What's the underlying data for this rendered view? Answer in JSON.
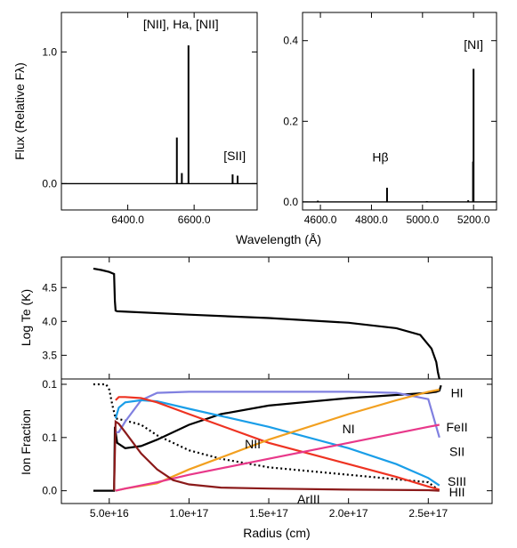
{
  "chart_data": [
    {
      "type": "line",
      "panel": "spectrum-red",
      "ylabel": "Flux (Relative Fλ)",
      "xlim": [
        6200,
        6790
      ],
      "ylim": [
        -0.2,
        1.3
      ],
      "x_ticks": [
        6400,
        6600
      ],
      "x_tick_labels": [
        "6400.0",
        "6600.0"
      ],
      "y_ticks": [
        0.0,
        1.0
      ],
      "y_tick_labels": [
        "0.0",
        "1.0"
      ],
      "baseline": 0.0,
      "lines": [
        {
          "x": 6548,
          "y": 0.35
        },
        {
          "x": 6563,
          "y": 0.08
        },
        {
          "x": 6583,
          "y": 1.05
        },
        {
          "x": 6716,
          "y": 0.07
        },
        {
          "x": 6731,
          "y": 0.06
        }
      ],
      "annotations": [
        {
          "text": "[NII], Ha, [NII]",
          "x": 6560,
          "y": 1.18
        },
        {
          "text": "[SII]",
          "x": 6722,
          "y": 0.18
        }
      ]
    },
    {
      "type": "line",
      "panel": "spectrum-blue",
      "xlim": [
        4530,
        5290
      ],
      "ylim": [
        -0.02,
        0.47
      ],
      "x_ticks": [
        4600,
        4800,
        5000,
        5200
      ],
      "x_tick_labels": [
        "4600.0",
        "4800.0",
        "5000.0",
        "5200.0"
      ],
      "y_ticks": [
        0.0,
        0.2,
        0.4
      ],
      "y_tick_labels": [
        "0.0",
        "0.2",
        "0.4"
      ],
      "baseline": 0.0,
      "lines": [
        {
          "x": 4590,
          "y": 0.003
        },
        {
          "x": 4861,
          "y": 0.035
        },
        {
          "x": 5017,
          "y": 0.002
        },
        {
          "x": 5179,
          "y": 0.004
        },
        {
          "x": 5198,
          "y": 0.1
        },
        {
          "x": 5200,
          "y": 0.33
        }
      ],
      "annotations": [
        {
          "text": "Hβ",
          "x": 4835,
          "y": 0.1
        },
        {
          "text": "[NI]",
          "x": 5200,
          "y": 0.38
        }
      ]
    },
    {
      "type": "line",
      "panel": "temperature",
      "ylabel": "Log Te (K)",
      "xlim": [
        2e+16,
        2.9e+17
      ],
      "ylim": [
        3.15,
        4.95
      ],
      "y_ticks": [
        3.5,
        4.0,
        4.5
      ],
      "y_tick_labels": [
        "3.5",
        "4.0",
        "4.5"
      ],
      "series": [
        {
          "x": [
            4e+16,
            4.5e+16,
            5e+16,
            5.3e+16,
            5.35e+16,
            5.4e+16,
            5.5e+16,
            1e+17,
            1.5e+17,
            2e+17,
            2.3e+17,
            2.45e+17,
            2.52e+17,
            2.55e+17,
            2.56e+17,
            2.57e+17
          ],
          "y": [
            4.78,
            4.76,
            4.73,
            4.7,
            4.3,
            4.16,
            4.15,
            4.1,
            4.05,
            3.98,
            3.9,
            3.8,
            3.6,
            3.4,
            3.25,
            3.15
          ]
        }
      ]
    },
    {
      "type": "line",
      "panel": "ion-fraction",
      "ylabel": "Ion Fraction",
      "xlabel": "Radius (cm)",
      "xlim": [
        2e+16,
        2.9e+17
      ],
      "ylim": [
        -0.012,
        0.105
      ],
      "x_ticks": [
        5e+16,
        1e+17,
        1.5e+17,
        2e+17,
        2.5e+17
      ],
      "x_tick_labels": [
        "5.0e+16",
        "1.0e+17",
        "1.5e+17",
        "2.0e+17",
        "2.5e+17"
      ],
      "y_ticks": [
        0.0,
        0.05,
        0.1
      ],
      "y_tick_labels": [
        "0.0",
        "0.1",
        "0.1"
      ],
      "series": [
        {
          "name": "HI",
          "color": "#000000",
          "dash": false,
          "x": [
            4e+16,
            5.3e+16,
            5.35e+16,
            5.5e+16,
            6e+16,
            7e+16,
            8e+16,
            1e+17,
            1.2e+17,
            1.5e+17,
            2e+17,
            2.5e+17,
            2.55e+17,
            2.57e+17,
            2.58e+17
          ],
          "y": [
            0.0,
            0.0,
            0.06,
            0.045,
            0.04,
            0.042,
            0.048,
            0.062,
            0.072,
            0.08,
            0.087,
            0.092,
            0.093,
            0.094,
            0.099
          ]
        },
        {
          "name": "HII",
          "color": "#000000",
          "dash": true,
          "x": [
            4e+16,
            4.8e+16,
            5e+16,
            5.2e+16,
            5.4e+16,
            6e+16,
            7e+16,
            8e+16,
            1e+17,
            1.2e+17,
            1.5e+17,
            2e+17,
            2.5e+17,
            2.57e+17
          ],
          "y": [
            0.1,
            0.1,
            0.095,
            0.08,
            0.068,
            0.066,
            0.062,
            0.052,
            0.038,
            0.03,
            0.022,
            0.015,
            0.008,
            0.0
          ]
        },
        {
          "name": "FeII",
          "color": "#8080e0",
          "dash": false,
          "x": [
            5.4e+16,
            5.6e+16,
            6e+16,
            7e+16,
            8e+16,
            1e+17,
            1.5e+17,
            2e+17,
            2.3e+17,
            2.5e+17,
            2.57e+17
          ],
          "y": [
            0.055,
            0.055,
            0.065,
            0.085,
            0.092,
            0.093,
            0.093,
            0.093,
            0.092,
            0.086,
            0.05
          ]
        },
        {
          "name": "SIII",
          "color": "#1a9ee8",
          "dash": false,
          "x": [
            5.4e+16,
            5.6e+16,
            6e+16,
            7e+16,
            8e+16,
            1e+17,
            1.5e+17,
            2e+17,
            2.3e+17,
            2.5e+17,
            2.57e+17
          ],
          "y": [
            0.068,
            0.078,
            0.083,
            0.085,
            0.084,
            0.077,
            0.06,
            0.04,
            0.025,
            0.012,
            0.005
          ]
        },
        {
          "name": "NII",
          "color": "#ee3322",
          "dash": false,
          "x": [
            5.4e+16,
            5.6e+16,
            6e+16,
            7e+16,
            8e+16,
            1e+17,
            1.5e+17,
            2e+17,
            2.3e+17,
            2.5e+17,
            2.57e+17
          ],
          "y": [
            0.085,
            0.088,
            0.088,
            0.087,
            0.083,
            0.072,
            0.045,
            0.025,
            0.013,
            0.004,
            0.001
          ]
        },
        {
          "name": "NI",
          "color": "#f2a020",
          "dash": false,
          "x": [
            5.4e+16,
            6e+16,
            8e+16,
            1e+17,
            1.5e+17,
            2e+17,
            2.3e+17,
            2.5e+17,
            2.57e+17
          ],
          "y": [
            0.0,
            0.002,
            0.007,
            0.02,
            0.048,
            0.072,
            0.085,
            0.093,
            0.095
          ]
        },
        {
          "name": "SII",
          "color": "#e8388a",
          "dash": false,
          "x": [
            5.4e+16,
            6e+16,
            8e+16,
            1e+17,
            1.5e+17,
            2e+17,
            2.5e+17,
            2.57e+17
          ],
          "y": [
            0.0,
            0.002,
            0.008,
            0.015,
            0.03,
            0.045,
            0.06,
            0.062
          ]
        },
        {
          "name": "ArIII",
          "color": "#8b1a1a",
          "dash": false,
          "x": [
            5.3e+16,
            5.4e+16,
            5.6e+16,
            6e+16,
            7e+16,
            8e+16,
            9e+16,
            1e+17,
            1.2e+17,
            1.5e+17,
            2e+17,
            2.5e+17,
            2.57e+17
          ],
          "y": [
            0.0,
            0.065,
            0.063,
            0.055,
            0.035,
            0.02,
            0.01,
            0.006,
            0.003,
            0.002,
            0.001,
            0.0005,
            0.0
          ]
        }
      ],
      "labels": [
        {
          "text": "HI",
          "series": "HI",
          "x": 2.68e+17,
          "y": 0.092
        },
        {
          "text": "FeII",
          "series": "FeII",
          "x": 2.68e+17,
          "y": 0.06
        },
        {
          "text": "SII",
          "series": "SII",
          "x": 2.68e+17,
          "y": 0.037
        },
        {
          "text": "SIII",
          "series": "SIII",
          "x": 2.68e+17,
          "y": 0.009
        },
        {
          "text": "HII",
          "series": "HII",
          "x": 2.68e+17,
          "y": -0.001
        },
        {
          "text": "NI",
          "series": "NI",
          "x": 2e+17,
          "y": 0.058
        },
        {
          "text": "NII",
          "series": "NII",
          "x": 1.4e+17,
          "y": 0.044
        },
        {
          "text": "ArIII",
          "series": "ArIII",
          "x": 1.75e+17,
          "y": -0.008
        }
      ]
    }
  ],
  "shared_xlabel": "Wavelength (Å)"
}
